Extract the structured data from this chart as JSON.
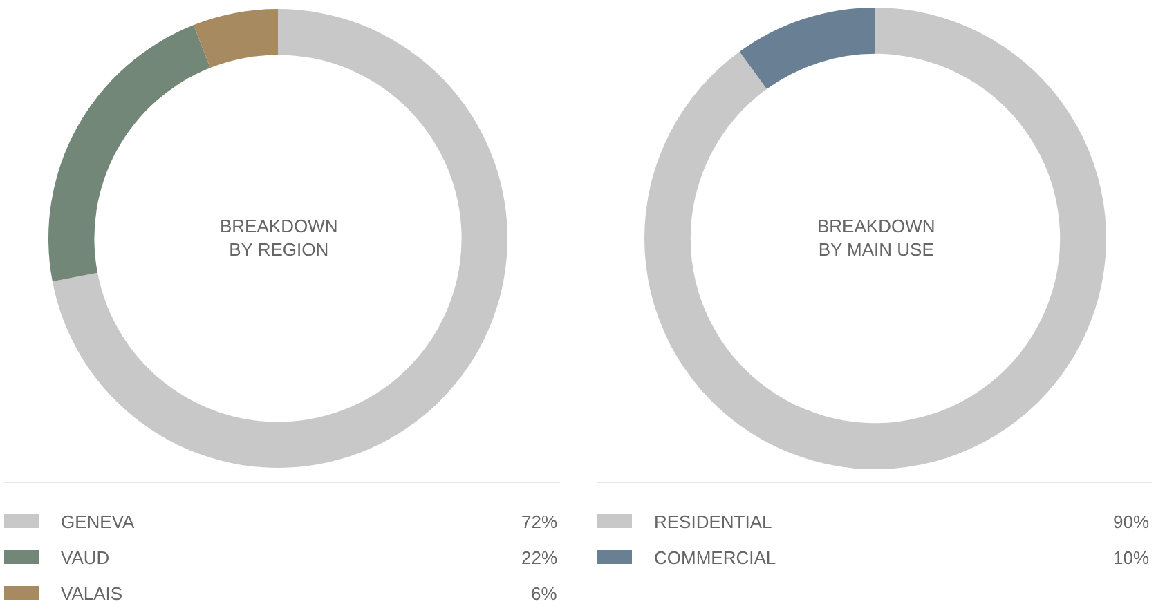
{
  "chart_data": [
    {
      "type": "donut",
      "title": "BREAKDOWN\nBY REGION",
      "categories": [
        "GENEVA",
        "VAUD",
        "VALAIS"
      ],
      "values": [
        72,
        22,
        6
      ],
      "colors": [
        "#c8c8c8",
        "#728777",
        "#a88a60"
      ],
      "value_labels": [
        "72%",
        "22%",
        "6%"
      ],
      "legend": "bottom"
    },
    {
      "type": "donut",
      "title": "BREAKDOWN\nBY MAIN USE",
      "categories": [
        "RESIDENTIAL",
        "COMMERCIAL"
      ],
      "values": [
        90,
        10
      ],
      "colors": [
        "#c8c8c8",
        "#687f94"
      ],
      "value_labels": [
        "90%",
        "10%"
      ],
      "legend": "bottom"
    }
  ]
}
